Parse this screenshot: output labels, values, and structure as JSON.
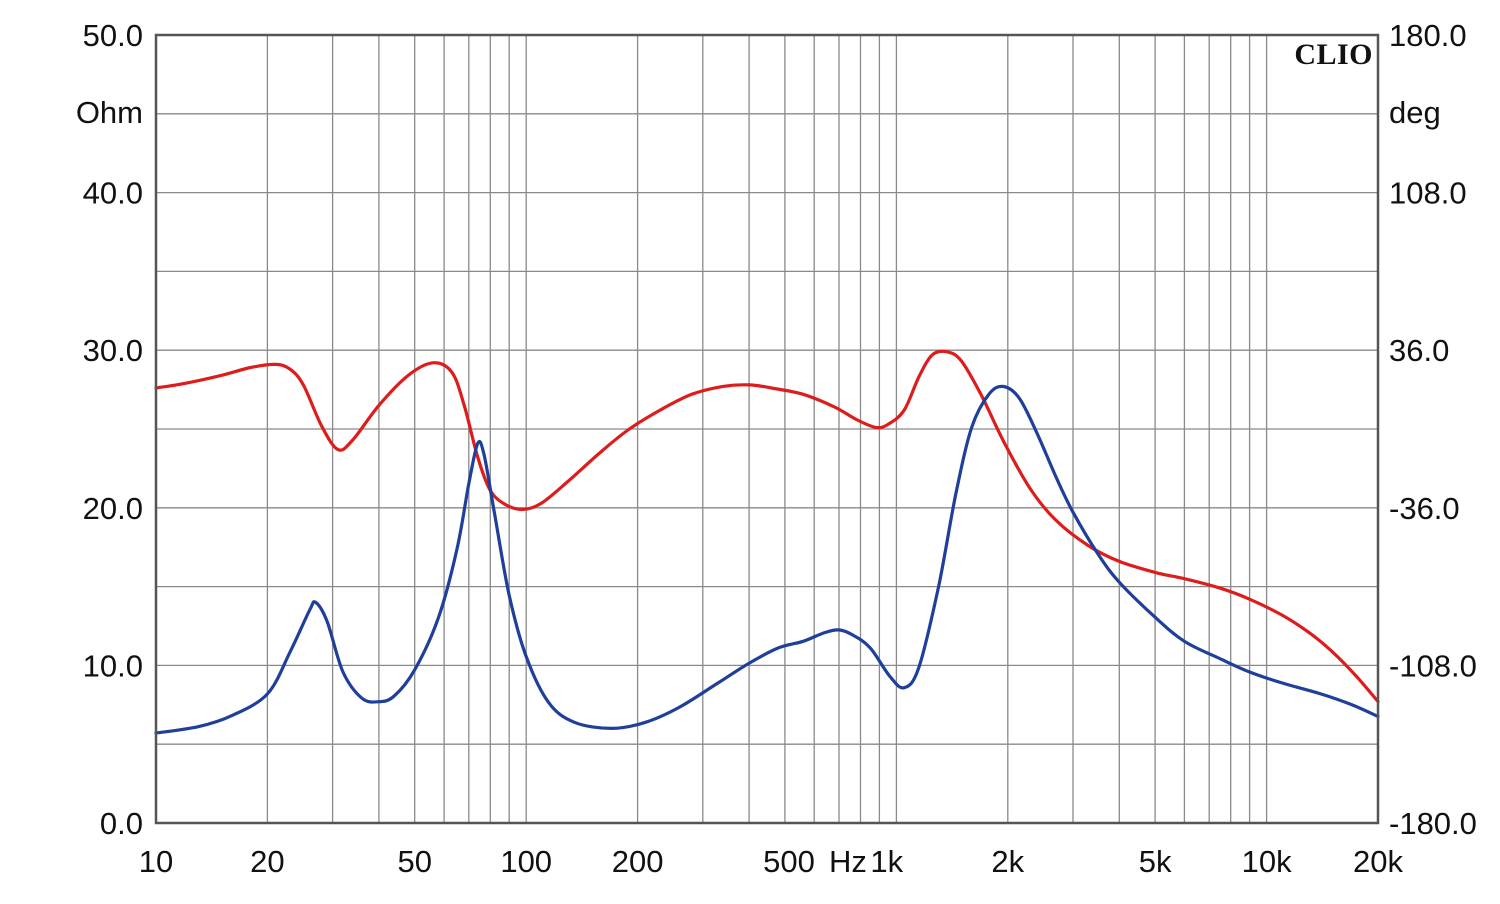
{
  "chart_data": {
    "type": "line",
    "brand": "CLIO",
    "x_scale": "log",
    "x_range": [
      10,
      20000
    ],
    "x_unit": "Hz",
    "x_ticks": [
      {
        "value": 10,
        "label": "10"
      },
      {
        "value": 20,
        "label": "20"
      },
      {
        "value": 50,
        "label": "50"
      },
      {
        "value": 100,
        "label": "100"
      },
      {
        "value": 200,
        "label": "200"
      },
      {
        "value": 500,
        "label": "500"
      },
      {
        "value": 1000,
        "label": "1k"
      },
      {
        "value": 2000,
        "label": "2k"
      },
      {
        "value": 5000,
        "label": "5k"
      },
      {
        "value": 10000,
        "label": "10k"
      },
      {
        "value": 20000,
        "label": "20k"
      }
    ],
    "y_left": {
      "unit": "Ohm",
      "range": [
        0,
        50
      ],
      "ticks": [
        {
          "value": 0,
          "label": "0.0"
        },
        {
          "value": 10,
          "label": "10.0"
        },
        {
          "value": 20,
          "label": "20.0"
        },
        {
          "value": 30,
          "label": "30.0"
        },
        {
          "value": 40,
          "label": "40.0"
        },
        {
          "value": 50,
          "label": "50.0"
        }
      ]
    },
    "y_right": {
      "unit": "deg",
      "range": [
        -180,
        180
      ],
      "ticks": [
        {
          "value": -180,
          "label": "-180.0"
        },
        {
          "value": -108,
          "label": "-108.0"
        },
        {
          "value": -36,
          "label": "-36.0"
        },
        {
          "value": 36,
          "label": "36.0"
        },
        {
          "value": 108,
          "label": "108.0"
        },
        {
          "value": 180,
          "label": "180.0"
        }
      ]
    },
    "grid": true,
    "series": [
      {
        "axis": "left",
        "color": "#dd1c1c",
        "points": [
          [
            10,
            27.6
          ],
          [
            12,
            27.9
          ],
          [
            15,
            28.4
          ],
          [
            18,
            28.9
          ],
          [
            21,
            29.1
          ],
          [
            23,
            28.8
          ],
          [
            25,
            27.8
          ],
          [
            28,
            25.2
          ],
          [
            31,
            23.7
          ],
          [
            34,
            24.3
          ],
          [
            40,
            26.5
          ],
          [
            48,
            28.4
          ],
          [
            56,
            29.2
          ],
          [
            63,
            28.6
          ],
          [
            68,
            26.5
          ],
          [
            74,
            23.2
          ],
          [
            80,
            21.1
          ],
          [
            88,
            20.2
          ],
          [
            98,
            19.9
          ],
          [
            110,
            20.3
          ],
          [
            130,
            21.7
          ],
          [
            160,
            23.6
          ],
          [
            190,
            25.0
          ],
          [
            230,
            26.2
          ],
          [
            280,
            27.2
          ],
          [
            340,
            27.7
          ],
          [
            400,
            27.8
          ],
          [
            460,
            27.6
          ],
          [
            560,
            27.2
          ],
          [
            680,
            26.4
          ],
          [
            780,
            25.6
          ],
          [
            880,
            25.1
          ],
          [
            950,
            25.3
          ],
          [
            1050,
            26.2
          ],
          [
            1150,
            28.3
          ],
          [
            1250,
            29.7
          ],
          [
            1370,
            29.9
          ],
          [
            1500,
            29.3
          ],
          [
            1700,
            27.1
          ],
          [
            1950,
            24.2
          ],
          [
            2300,
            21.2
          ],
          [
            2700,
            19.2
          ],
          [
            3300,
            17.6
          ],
          [
            4000,
            16.6
          ],
          [
            5000,
            15.9
          ],
          [
            6000,
            15.5
          ],
          [
            7500,
            14.9
          ],
          [
            9000,
            14.2
          ],
          [
            11000,
            13.2
          ],
          [
            13000,
            12.1
          ],
          [
            15000,
            10.9
          ],
          [
            17500,
            9.3
          ],
          [
            20000,
            7.7
          ]
        ]
      },
      {
        "axis": "right",
        "color": "#1f3f9a",
        "points": [
          [
            10,
            -138.9
          ],
          [
            13,
            -136
          ],
          [
            16,
            -131
          ],
          [
            20,
            -121
          ],
          [
            23,
            -102
          ],
          [
            26,
            -82.8
          ],
          [
            27,
            -79.2
          ],
          [
            29,
            -88
          ],
          [
            32,
            -111
          ],
          [
            36,
            -123
          ],
          [
            40,
            -124.6
          ],
          [
            44,
            -122
          ],
          [
            50,
            -110
          ],
          [
            58,
            -86
          ],
          [
            65,
            -55
          ],
          [
            70,
            -25
          ],
          [
            74,
            -6.5
          ],
          [
            77,
            -12
          ],
          [
            82,
            -38
          ],
          [
            90,
            -76
          ],
          [
            100,
            -104
          ],
          [
            115,
            -125
          ],
          [
            135,
            -134
          ],
          [
            170,
            -136.8
          ],
          [
            210,
            -134
          ],
          [
            260,
            -127
          ],
          [
            330,
            -116
          ],
          [
            400,
            -107
          ],
          [
            480,
            -100
          ],
          [
            560,
            -97
          ],
          [
            640,
            -93
          ],
          [
            700,
            -91.8
          ],
          [
            760,
            -94
          ],
          [
            850,
            -100
          ],
          [
            960,
            -113
          ],
          [
            1050,
            -118.2
          ],
          [
            1150,
            -109
          ],
          [
            1300,
            -72
          ],
          [
            1450,
            -29
          ],
          [
            1600,
            1
          ],
          [
            1780,
            16
          ],
          [
            1950,
            19.4
          ],
          [
            2150,
            14
          ],
          [
            2400,
            -2
          ],
          [
            2700,
            -22
          ],
          [
            3000,
            -38
          ],
          [
            3500,
            -57
          ],
          [
            4000,
            -70
          ],
          [
            5000,
            -86
          ],
          [
            6000,
            -97
          ],
          [
            7500,
            -105
          ],
          [
            9000,
            -111
          ],
          [
            11000,
            -116
          ],
          [
            14000,
            -121
          ],
          [
            17000,
            -126
          ],
          [
            20000,
            -131.3
          ]
        ]
      }
    ]
  }
}
